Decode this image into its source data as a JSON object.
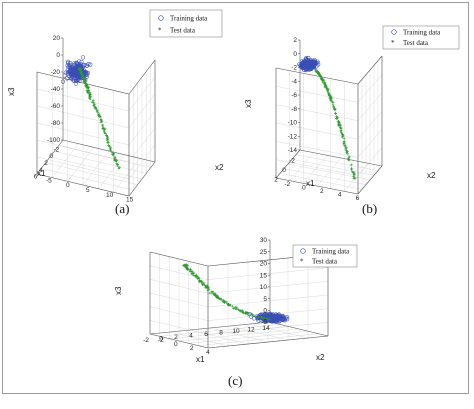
{
  "chart_data": [
    {
      "type": "scatter",
      "panel_label": "(a)",
      "xlabel": "x1",
      "ylabel": "x2",
      "zlabel": "x3",
      "x_ticks": [
        "-2",
        "0",
        "2",
        "4",
        "6"
      ],
      "y_ticks": [
        "-5",
        "0",
        "5",
        "10",
        "15"
      ],
      "z_ticks": [
        "20",
        "0",
        "-20",
        "-40",
        "-60",
        "-80",
        "-100"
      ],
      "xlim": [
        -4,
        6
      ],
      "ylim": [
        -5,
        15
      ],
      "zlim": [
        -100,
        20
      ],
      "grid": true,
      "legend_position": "top-right",
      "series": [
        {
          "name": "Training data",
          "marker": "circle",
          "color": "#3a4fb5",
          "cluster": {
            "x_range": [
              -2.5,
              1.5
            ],
            "y_range": [
              -3,
              3
            ],
            "z_range": [
              -12,
              15
            ]
          }
        },
        {
          "name": "Test data",
          "marker": "cross",
          "color": "#2e9a2e",
          "trend": {
            "x": [
              -1.5,
              0,
              1.5,
              3,
              4.5,
              5.5
            ],
            "y": [
              0,
              2,
              4,
              7,
              10,
              13
            ],
            "z": [
              0,
              -5,
              -15,
              -30,
              -55,
              -78
            ]
          }
        }
      ]
    },
    {
      "type": "scatter",
      "panel_label": "(b)",
      "xlabel": "x1",
      "ylabel": "x2",
      "zlabel": "x3",
      "x_ticks": [
        "-2",
        "0",
        "2"
      ],
      "y_ticks": [
        "-2",
        "0",
        "2",
        "4",
        "6"
      ],
      "z_ticks": [
        "2",
        "0",
        "-2",
        "-4",
        "-6",
        "-8",
        "-10",
        "-12",
        "-14"
      ],
      "xlim": [
        -2,
        3
      ],
      "ylim": [
        -2,
        6
      ],
      "zlim": [
        -14,
        2
      ],
      "grid": true,
      "legend_position": "top-right",
      "series": [
        {
          "name": "Training data",
          "marker": "circle",
          "color": "#3a4fb5",
          "cluster": {
            "x_range": [
              -1.5,
              0.5
            ],
            "y_range": [
              -1.5,
              0.5
            ],
            "z_range": [
              -0.3,
              0.5
            ]
          }
        },
        {
          "name": "Test data",
          "marker": "cross",
          "color": "#2e9a2e",
          "trend": {
            "x": [
              0,
              0.5,
              1,
              1.5,
              2,
              2.5
            ],
            "y": [
              0.5,
              1.5,
              2.5,
              3.5,
              4.5,
              5.5
            ],
            "z": [
              0,
              -1,
              -3,
              -6,
              -9.5,
              -12.5
            ]
          }
        }
      ]
    },
    {
      "type": "scatter",
      "panel_label": "(c)",
      "xlabel": "x1",
      "ylabel": "x2",
      "zlabel": "x3",
      "x_ticks": [
        "14",
        "12",
        "10",
        "8",
        "6",
        "4",
        "2",
        "0",
        "-2"
      ],
      "y_ticks": [
        "-2",
        "0",
        "2",
        "4"
      ],
      "z_ticks": [
        "30",
        "25",
        "20",
        "15",
        "10",
        "5",
        "0",
        "-5"
      ],
      "xlim": [
        -2,
        14
      ],
      "ylim": [
        -2,
        4
      ],
      "zlim": [
        -5,
        30
      ],
      "grid": true,
      "legend_position": "top-right",
      "series": [
        {
          "name": "Training data",
          "marker": "circle",
          "color": "#3a4fb5",
          "cluster": {
            "x_range": [
              -1,
              3
            ],
            "y_range": [
              -1,
              2
            ],
            "z_range": [
              -1,
              1.5
            ]
          }
        },
        {
          "name": "Test data",
          "marker": "cross",
          "color": "#2e9a2e",
          "trend": {
            "x": [
              12,
              10,
              8,
              6,
              4,
              2
            ],
            "y": [
              0,
              0.2,
              0.4,
              0.6,
              0.8,
              1
            ],
            "z": [
              26,
              18,
              11,
              6,
              2.5,
              0.5
            ]
          }
        }
      ]
    }
  ]
}
